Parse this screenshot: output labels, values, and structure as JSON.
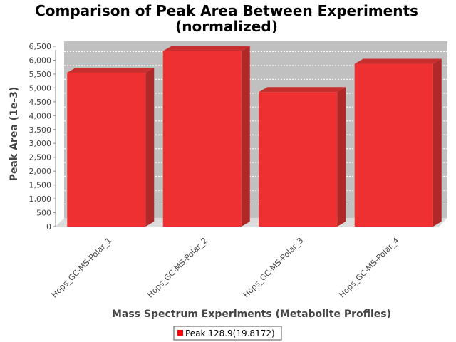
{
  "chart_data": {
    "type": "bar",
    "title": "Comparison of Peak Area Between Experiments",
    "subtitle": "(normalized)",
    "xlabel": "Mass Spectrum Experiments (Metabolite Profiles)",
    "ylabel": "Peak Area (1e-3)",
    "categories": [
      "Hops_GC-MS-Polar_1",
      "Hops_GC-MS-Polar_2",
      "Hops_GC-MS-Polar_3",
      "Hops_GC-MS-Polar_4"
    ],
    "series": [
      {
        "name": "Peak 128.9(19.8172)",
        "values": [
          5550,
          6330,
          4850,
          5870
        ]
      }
    ],
    "ylim": [
      0,
      6500
    ],
    "yticks": [
      0,
      500,
      1000,
      1500,
      2000,
      2500,
      3000,
      3500,
      4000,
      4500,
      5000,
      5500,
      6000,
      6500
    ],
    "ytick_labels": [
      "0",
      "500",
      "1,000",
      "1,500",
      "2,000",
      "2,500",
      "3,000",
      "3,500",
      "4,000",
      "4,500",
      "5,000",
      "5,500",
      "6,000",
      "6,500"
    ],
    "grid": true,
    "legend_position": "bottom",
    "colors": {
      "bar_front": "#ef3030",
      "bar_side": "#b02828",
      "bar_top": "#c83030",
      "plot_back": "#c0c0c0",
      "plot_floor": "#dcdcdc",
      "gridline": "#ffffff"
    }
  }
}
